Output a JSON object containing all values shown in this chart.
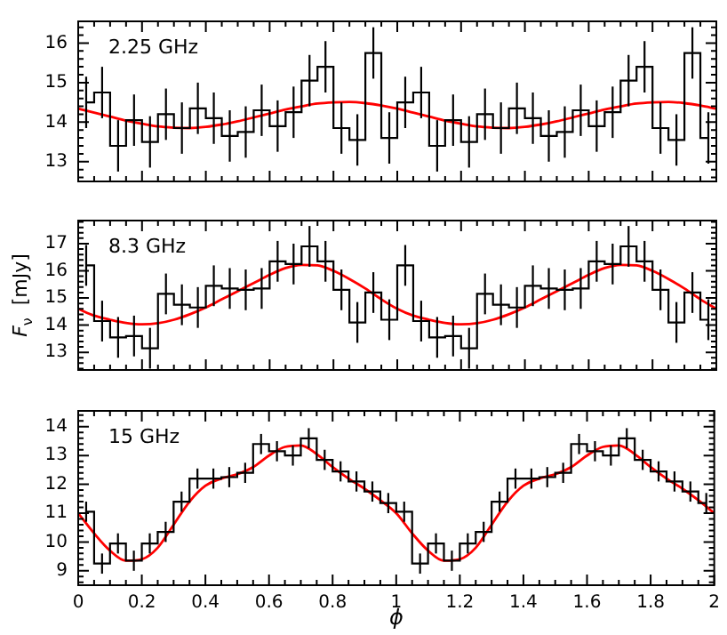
{
  "chart_data": [
    {
      "type": "step",
      "annotations": [
        "2.25 GHz"
      ],
      "tick_labels": "y",
      "xlim": [
        0,
        2
      ],
      "ylim": [
        12.5,
        16.55
      ],
      "xticks": [
        0,
        {
          "value": 0.05,
          "label": null
        },
        {
          "value": 0.1,
          "label": null
        },
        {
          "value": 0.15,
          "label": null
        },
        0.2,
        {
          "value": 0.25,
          "label": null
        },
        {
          "value": 0.3,
          "label": null
        },
        {
          "value": 0.35,
          "label": null
        },
        0.4,
        {
          "value": 0.45,
          "label": null
        },
        {
          "value": 0.5,
          "label": null
        },
        {
          "value": 0.55,
          "label": null
        },
        0.6,
        {
          "value": 0.65,
          "label": null
        },
        {
          "value": 0.7,
          "label": null
        },
        {
          "value": 0.75,
          "label": null
        },
        0.8,
        {
          "value": 0.85,
          "label": null
        },
        {
          "value": 0.9,
          "label": null
        },
        {
          "value": 0.95,
          "label": null
        },
        1,
        {
          "value": 1.05,
          "label": null
        },
        {
          "value": 1.1,
          "label": null
        },
        {
          "value": 1.15,
          "label": null
        },
        1.2,
        {
          "value": 1.25,
          "label": null
        },
        {
          "value": 1.3,
          "label": null
        },
        {
          "value": 1.35,
          "label": null
        },
        1.4,
        {
          "value": 1.45,
          "label": null
        },
        {
          "value": 1.5,
          "label": null
        },
        {
          "value": 1.55,
          "label": null
        },
        1.6,
        {
          "value": 1.65,
          "label": null
        },
        {
          "value": 1.7,
          "label": null
        },
        {
          "value": 1.75,
          "label": null
        },
        1.8,
        {
          "value": 1.85,
          "label": null
        },
        {
          "value": 1.9,
          "label": null
        },
        {
          "value": 1.95,
          "label": null
        },
        2
      ],
      "yticks": [
        {
          "value": 12.6,
          "label": null
        },
        {
          "value": 12.8,
          "label": null
        },
        13,
        {
          "value": 13.2,
          "label": null
        },
        {
          "value": 13.4,
          "label": null
        },
        {
          "value": 13.6,
          "label": null
        },
        {
          "value": 13.8,
          "label": null
        },
        14,
        {
          "value": 14.2,
          "label": null
        },
        {
          "value": 14.4,
          "label": null
        },
        {
          "value": 14.6,
          "label": null
        },
        {
          "value": 14.8,
          "label": null
        },
        15,
        {
          "value": 15.2,
          "label": null
        },
        {
          "value": 15.4,
          "label": null
        },
        {
          "value": 15.6,
          "label": null
        },
        {
          "value": 15.8,
          "label": null
        },
        16,
        {
          "value": 16.2,
          "label": null
        },
        {
          "value": 16.4,
          "label": null
        }
      ],
      "color": "#000000",
      "x": [
        0.025,
        0.075,
        0.125,
        0.175,
        0.225,
        0.275,
        0.325,
        0.375,
        0.425,
        0.475,
        0.525,
        0.575,
        0.625,
        0.675,
        0.725,
        0.775,
        0.825,
        0.875,
        0.925,
        0.975,
        1.025,
        1.075,
        1.125,
        1.175,
        1.225,
        1.275,
        1.325,
        1.375,
        1.425,
        1.475,
        1.525,
        1.575,
        1.625,
        1.675,
        1.725,
        1.775,
        1.825,
        1.875,
        1.925,
        1.975
      ],
      "values": [
        14.5,
        14.75,
        13.4,
        14.05,
        13.5,
        14.2,
        13.85,
        14.35,
        14.1,
        13.65,
        13.75,
        14.3,
        13.9,
        14.25,
        15.05,
        15.4,
        13.85,
        13.55,
        15.75,
        13.6,
        14.5,
        14.75,
        13.4,
        14.05,
        13.5,
        14.2,
        13.85,
        14.35,
        14.1,
        13.65,
        13.75,
        14.3,
        13.9,
        14.25,
        15.05,
        15.4,
        13.85,
        13.55,
        15.75,
        13.6
      ],
      "errors": [
        0.65,
        0.65,
        0.65,
        0.65,
        0.65,
        0.65,
        0.65,
        0.65,
        0.65,
        0.65,
        0.65,
        0.65,
        0.65,
        0.65,
        0.65,
        0.65,
        0.65,
        0.65,
        0.65,
        0.65,
        0.65,
        0.65,
        0.65,
        0.65,
        0.65,
        0.65,
        0.65,
        0.65,
        0.65,
        0.65,
        0.65,
        0.65,
        0.65,
        0.65,
        0.65,
        0.65,
        0.65,
        0.65,
        0.65,
        0.65
      ],
      "series": [
        {
          "type": "line",
          "color": "#ff0000",
          "x": [
            0,
            0.05,
            0.1,
            0.15,
            0.2,
            0.25,
            0.3,
            0.35,
            0.4,
            0.45,
            0.5,
            0.55,
            0.6,
            0.65,
            0.7,
            0.75,
            0.8,
            0.85,
            0.9,
            0.95,
            1,
            1.05,
            1.1,
            1.15,
            1.2,
            1.25,
            1.3,
            1.35,
            1.4,
            1.45,
            1.5,
            1.55,
            1.6,
            1.65,
            1.7,
            1.75,
            1.8,
            1.85,
            1.9,
            1.95,
            2
          ],
          "values": [
            14.34,
            14.24,
            14.14,
            14.04,
            13.96,
            13.89,
            13.86,
            13.85,
            13.88,
            13.94,
            14.02,
            14.12,
            14.22,
            14.32,
            14.4,
            14.47,
            14.5,
            14.51,
            14.48,
            14.42,
            14.34,
            14.24,
            14.14,
            14.04,
            13.96,
            13.89,
            13.86,
            13.85,
            13.88,
            13.94,
            14.02,
            14.12,
            14.22,
            14.32,
            14.4,
            14.47,
            14.5,
            14.51,
            14.48,
            14.42,
            14.34
          ]
        }
      ]
    },
    {
      "type": "step",
      "annotations": [
        "8.3 GHz"
      ],
      "ylabel": "F$_{ν}$  [mJy]",
      "tick_labels": "y",
      "xlim": [
        0,
        2
      ],
      "ylim": [
        12.35,
        17.85
      ],
      "xticks": [
        0,
        {
          "value": 0.05,
          "label": null
        },
        {
          "value": 0.1,
          "label": null
        },
        {
          "value": 0.15,
          "label": null
        },
        0.2,
        {
          "value": 0.25,
          "label": null
        },
        {
          "value": 0.3,
          "label": null
        },
        {
          "value": 0.35,
          "label": null
        },
        0.4,
        {
          "value": 0.45,
          "label": null
        },
        {
          "value": 0.5,
          "label": null
        },
        {
          "value": 0.55,
          "label": null
        },
        0.6,
        {
          "value": 0.65,
          "label": null
        },
        {
          "value": 0.7,
          "label": null
        },
        {
          "value": 0.75,
          "label": null
        },
        0.8,
        {
          "value": 0.85,
          "label": null
        },
        {
          "value": 0.9,
          "label": null
        },
        {
          "value": 0.95,
          "label": null
        },
        1,
        {
          "value": 1.05,
          "label": null
        },
        {
          "value": 1.1,
          "label": null
        },
        {
          "value": 1.15,
          "label": null
        },
        1.2,
        {
          "value": 1.25,
          "label": null
        },
        {
          "value": 1.3,
          "label": null
        },
        {
          "value": 1.35,
          "label": null
        },
        1.4,
        {
          "value": 1.45,
          "label": null
        },
        {
          "value": 1.5,
          "label": null
        },
        {
          "value": 1.55,
          "label": null
        },
        1.6,
        {
          "value": 1.65,
          "label": null
        },
        {
          "value": 1.7,
          "label": null
        },
        {
          "value": 1.75,
          "label": null
        },
        1.8,
        {
          "value": 1.85,
          "label": null
        },
        {
          "value": 1.9,
          "label": null
        },
        {
          "value": 1.95,
          "label": null
        },
        2
      ],
      "yticks": [
        {
          "value": 12.4,
          "label": null
        },
        {
          "value": 12.6,
          "label": null
        },
        {
          "value": 12.8,
          "label": null
        },
        13,
        {
          "value": 13.2,
          "label": null
        },
        {
          "value": 13.4,
          "label": null
        },
        {
          "value": 13.6,
          "label": null
        },
        {
          "value": 13.8,
          "label": null
        },
        14,
        {
          "value": 14.2,
          "label": null
        },
        {
          "value": 14.4,
          "label": null
        },
        {
          "value": 14.6,
          "label": null
        },
        {
          "value": 14.8,
          "label": null
        },
        15,
        {
          "value": 15.2,
          "label": null
        },
        {
          "value": 15.4,
          "label": null
        },
        {
          "value": 15.6,
          "label": null
        },
        {
          "value": 15.8,
          "label": null
        },
        16,
        {
          "value": 16.2,
          "label": null
        },
        {
          "value": 16.4,
          "label": null
        },
        {
          "value": 16.6,
          "label": null
        },
        {
          "value": 16.8,
          "label": null
        },
        17,
        {
          "value": 17.2,
          "label": null
        },
        {
          "value": 17.4,
          "label": null
        },
        {
          "value": 17.6,
          "label": null
        },
        {
          "value": 17.8,
          "label": null
        }
      ],
      "color": "#000000",
      "x": [
        0.025,
        0.075,
        0.125,
        0.175,
        0.225,
        0.275,
        0.325,
        0.375,
        0.425,
        0.475,
        0.525,
        0.575,
        0.625,
        0.675,
        0.725,
        0.775,
        0.825,
        0.875,
        0.925,
        0.975,
        1.025,
        1.075,
        1.125,
        1.175,
        1.225,
        1.275,
        1.325,
        1.375,
        1.425,
        1.475,
        1.525,
        1.575,
        1.625,
        1.675,
        1.725,
        1.775,
        1.825,
        1.875,
        1.925,
        1.975
      ],
      "values": [
        16.2,
        14.15,
        13.55,
        13.6,
        13.15,
        15.15,
        14.75,
        14.65,
        15.45,
        15.35,
        15.3,
        15.35,
        16.35,
        16.25,
        16.9,
        16.35,
        15.3,
        14.1,
        15.2,
        14.2,
        16.2,
        14.15,
        13.55,
        13.6,
        13.15,
        15.15,
        14.75,
        14.65,
        15.45,
        15.35,
        15.3,
        15.35,
        16.35,
        16.25,
        16.9,
        16.35,
        15.3,
        14.1,
        15.2,
        14.2
      ],
      "errors": [
        0.75,
        0.75,
        0.75,
        0.75,
        0.75,
        0.75,
        0.75,
        0.75,
        0.75,
        0.75,
        0.75,
        0.75,
        0.75,
        0.75,
        0.75,
        0.75,
        0.75,
        0.75,
        0.75,
        0.75,
        0.75,
        0.75,
        0.75,
        0.75,
        0.75,
        0.75,
        0.75,
        0.75,
        0.75,
        0.75,
        0.75,
        0.75,
        0.75,
        0.75,
        0.75,
        0.75,
        0.75,
        0.75,
        0.75,
        0.75
      ],
      "series": [
        {
          "type": "line",
          "color": "#ff0000",
          "x": [
            0,
            0.05,
            0.1,
            0.15,
            0.2,
            0.25,
            0.3,
            0.35,
            0.4,
            0.45,
            0.5,
            0.55,
            0.6,
            0.65,
            0.7,
            0.75,
            0.8,
            0.85,
            0.9,
            0.95,
            1,
            1.05,
            1.1,
            1.15,
            1.2,
            1.25,
            1.3,
            1.35,
            1.4,
            1.45,
            1.5,
            1.55,
            1.6,
            1.65,
            1.7,
            1.75,
            1.8,
            1.85,
            1.9,
            1.95,
            2
          ],
          "values": [
            14.6,
            14.35,
            14.2,
            14.08,
            14.03,
            14.07,
            14.2,
            14.4,
            14.65,
            14.95,
            15.25,
            15.55,
            15.85,
            16.1,
            16.22,
            16.2,
            16.0,
            15.7,
            15.35,
            14.95,
            14.6,
            14.35,
            14.2,
            14.08,
            14.03,
            14.07,
            14.2,
            14.4,
            14.65,
            14.95,
            15.25,
            15.55,
            15.85,
            16.1,
            16.22,
            16.2,
            16.0,
            15.7,
            15.35,
            14.95,
            14.6
          ]
        }
      ]
    },
    {
      "type": "step",
      "annotations": [
        "15 GHz"
      ],
      "xlabel": "ϕ",
      "xlim": [
        0,
        2
      ],
      "ylim": [
        8.5,
        14.55
      ],
      "xticks": [
        0,
        {
          "value": 0.05,
          "label": null
        },
        {
          "value": 0.1,
          "label": null
        },
        {
          "value": 0.15,
          "label": null
        },
        0.2,
        {
          "value": 0.25,
          "label": null
        },
        {
          "value": 0.3,
          "label": null
        },
        {
          "value": 0.35,
          "label": null
        },
        0.4,
        {
          "value": 0.45,
          "label": null
        },
        {
          "value": 0.5,
          "label": null
        },
        {
          "value": 0.55,
          "label": null
        },
        0.6,
        {
          "value": 0.65,
          "label": null
        },
        {
          "value": 0.7,
          "label": null
        },
        {
          "value": 0.75,
          "label": null
        },
        0.8,
        {
          "value": 0.85,
          "label": null
        },
        {
          "value": 0.9,
          "label": null
        },
        {
          "value": 0.95,
          "label": null
        },
        1,
        {
          "value": 1.05,
          "label": null
        },
        {
          "value": 1.1,
          "label": null
        },
        {
          "value": 1.15,
          "label": null
        },
        1.2,
        {
          "value": 1.25,
          "label": null
        },
        {
          "value": 1.3,
          "label": null
        },
        {
          "value": 1.35,
          "label": null
        },
        1.4,
        {
          "value": 1.45,
          "label": null
        },
        {
          "value": 1.5,
          "label": null
        },
        {
          "value": 1.55,
          "label": null
        },
        1.6,
        {
          "value": 1.65,
          "label": null
        },
        {
          "value": 1.7,
          "label": null
        },
        {
          "value": 1.75,
          "label": null
        },
        1.8,
        {
          "value": 1.85,
          "label": null
        },
        {
          "value": 1.9,
          "label": null
        },
        {
          "value": 1.95,
          "label": null
        },
        2
      ],
      "yticks": [
        {
          "value": 8.6,
          "label": null
        },
        {
          "value": 8.8,
          "label": null
        },
        9,
        {
          "value": 9.2,
          "label": null
        },
        {
          "value": 9.4,
          "label": null
        },
        {
          "value": 9.6,
          "label": null
        },
        {
          "value": 9.8,
          "label": null
        },
        10,
        {
          "value": 10.2,
          "label": null
        },
        {
          "value": 10.4,
          "label": null
        },
        {
          "value": 10.6,
          "label": null
        },
        {
          "value": 10.8,
          "label": null
        },
        11,
        {
          "value": 11.2,
          "label": null
        },
        {
          "value": 11.4,
          "label": null
        },
        {
          "value": 11.6,
          "label": null
        },
        {
          "value": 11.8,
          "label": null
        },
        12,
        {
          "value": 12.2,
          "label": null
        },
        {
          "value": 12.4,
          "label": null
        },
        {
          "value": 12.6,
          "label": null
        },
        {
          "value": 12.8,
          "label": null
        },
        13,
        {
          "value": 13.2,
          "label": null
        },
        {
          "value": 13.4,
          "label": null
        },
        {
          "value": 13.6,
          "label": null
        },
        {
          "value": 13.8,
          "label": null
        },
        14,
        {
          "value": 14.2,
          "label": null
        },
        {
          "value": 14.4,
          "label": null
        }
      ],
      "color": "#000000",
      "x": [
        0.025,
        0.075,
        0.125,
        0.175,
        0.225,
        0.275,
        0.325,
        0.375,
        0.425,
        0.475,
        0.525,
        0.575,
        0.625,
        0.675,
        0.725,
        0.775,
        0.825,
        0.875,
        0.925,
        0.975,
        1.025,
        1.075,
        1.125,
        1.175,
        1.225,
        1.275,
        1.325,
        1.375,
        1.425,
        1.475,
        1.525,
        1.575,
        1.625,
        1.675,
        1.725,
        1.775,
        1.825,
        1.875,
        1.925,
        1.975
      ],
      "values": [
        11.05,
        9.25,
        9.95,
        9.35,
        9.95,
        10.35,
        11.4,
        12.2,
        12.2,
        12.25,
        12.4,
        13.4,
        13.15,
        13.0,
        13.6,
        12.85,
        12.45,
        12.1,
        11.75,
        11.35,
        11.05,
        9.25,
        9.95,
        9.35,
        9.95,
        10.35,
        11.4,
        12.2,
        12.2,
        12.25,
        12.4,
        13.4,
        13.15,
        13.0,
        13.6,
        12.85,
        12.45,
        12.1,
        11.75,
        11.35
      ],
      "errors": [
        0.35,
        0.35,
        0.35,
        0.35,
        0.35,
        0.35,
        0.35,
        0.35,
        0.35,
        0.35,
        0.35,
        0.35,
        0.35,
        0.35,
        0.35,
        0.35,
        0.35,
        0.35,
        0.35,
        0.35,
        0.35,
        0.35,
        0.35,
        0.35,
        0.35,
        0.35,
        0.35,
        0.35,
        0.35,
        0.35,
        0.35,
        0.35,
        0.35,
        0.35,
        0.35,
        0.35,
        0.35,
        0.35,
        0.35,
        0.35
      ],
      "series": [
        {
          "type": "line",
          "color": "#ff0000",
          "x": [
            0,
            0.05,
            0.1,
            0.15,
            0.2,
            0.25,
            0.3,
            0.35,
            0.4,
            0.45,
            0.5,
            0.55,
            0.6,
            0.65,
            0.7,
            0.75,
            0.8,
            0.85,
            0.9,
            0.95,
            1,
            1.05,
            1.1,
            1.15,
            1.2,
            1.25,
            1.3,
            1.35,
            1.4,
            1.45,
            1.5,
            1.55,
            1.6,
            1.65,
            1.7,
            1.75,
            1.8,
            1.85,
            1.9,
            1.95,
            2
          ],
          "values": [
            11.0,
            10.3,
            9.7,
            9.35,
            9.4,
            9.8,
            10.6,
            11.4,
            11.95,
            12.2,
            12.35,
            12.6,
            13.0,
            13.3,
            13.35,
            13.05,
            12.6,
            12.2,
            11.85,
            11.45,
            11.0,
            10.3,
            9.7,
            9.35,
            9.4,
            9.8,
            10.6,
            11.4,
            11.95,
            12.2,
            12.35,
            12.6,
            13.0,
            13.3,
            13.35,
            13.05,
            12.6,
            12.2,
            11.85,
            11.45,
            11.0
          ]
        }
      ]
    }
  ]
}
